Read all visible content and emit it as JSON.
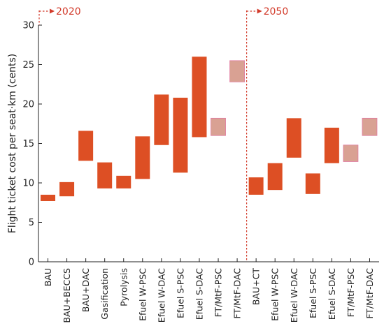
{
  "chart_data": {
    "type": "bar",
    "subtype": "floating-range",
    "ylabel": "Flight ticket cost per seat·km (cents)",
    "ylim": [
      0,
      30
    ],
    "yticks": [
      0,
      5,
      10,
      15,
      20,
      25,
      30
    ],
    "grid": false,
    "categories": [
      "BAU",
      "BAU+BECCS",
      "BAU+DAC",
      "Gasification",
      "Pyrolysis",
      "Efuel W-PSC",
      "Efuel W-DAC",
      "Efuel S-PSC",
      "Efuel S-DAC",
      "FT/MtF-PSC",
      "FT/MtF-DAC",
      "BAU+CT",
      "Efuel W-PSC",
      "Efuel W-DAC",
      "Efuel S-PSC",
      "Efuel S-DAC",
      "FT/MtF-PSC",
      "FT/MtF-DAC"
    ],
    "periods": [
      {
        "label": "2020",
        "start_index": 0,
        "end_index": 10
      },
      {
        "label": "2050",
        "start_index": 11,
        "end_index": 17
      }
    ],
    "ranges": [
      {
        "low": 7.7,
        "high": 8.5,
        "style": "solid"
      },
      {
        "low": 8.3,
        "high": 10.1,
        "style": "solid"
      },
      {
        "low": 12.8,
        "high": 16.6,
        "style": "solid"
      },
      {
        "low": 9.3,
        "high": 12.6,
        "style": "solid"
      },
      {
        "low": 9.3,
        "high": 10.9,
        "style": "solid"
      },
      {
        "low": 10.5,
        "high": 15.9,
        "style": "solid"
      },
      {
        "low": 14.8,
        "high": 21.2,
        "style": "solid"
      },
      {
        "low": 11.3,
        "high": 20.8,
        "style": "solid"
      },
      {
        "low": 15.8,
        "high": 26.0,
        "style": "solid"
      },
      {
        "low": 16.0,
        "high": 18.2,
        "style": "light"
      },
      {
        "low": 22.8,
        "high": 25.5,
        "style": "light"
      },
      {
        "low": 8.5,
        "high": 10.7,
        "style": "solid"
      },
      {
        "low": 9.1,
        "high": 12.5,
        "style": "solid"
      },
      {
        "low": 13.2,
        "high": 18.2,
        "style": "solid"
      },
      {
        "low": 8.6,
        "high": 11.2,
        "style": "solid"
      },
      {
        "low": 12.5,
        "high": 17.0,
        "style": "solid"
      },
      {
        "low": 12.7,
        "high": 14.8,
        "style": "light"
      },
      {
        "low": 16.0,
        "high": 18.2,
        "style": "light"
      }
    ]
  },
  "colors": {
    "solid_fill": "#dd4f24",
    "light_fill": "#d9a193",
    "light_stroke": "#e07aa0",
    "period_marker": "#d23a2a",
    "axis": "#222222"
  }
}
